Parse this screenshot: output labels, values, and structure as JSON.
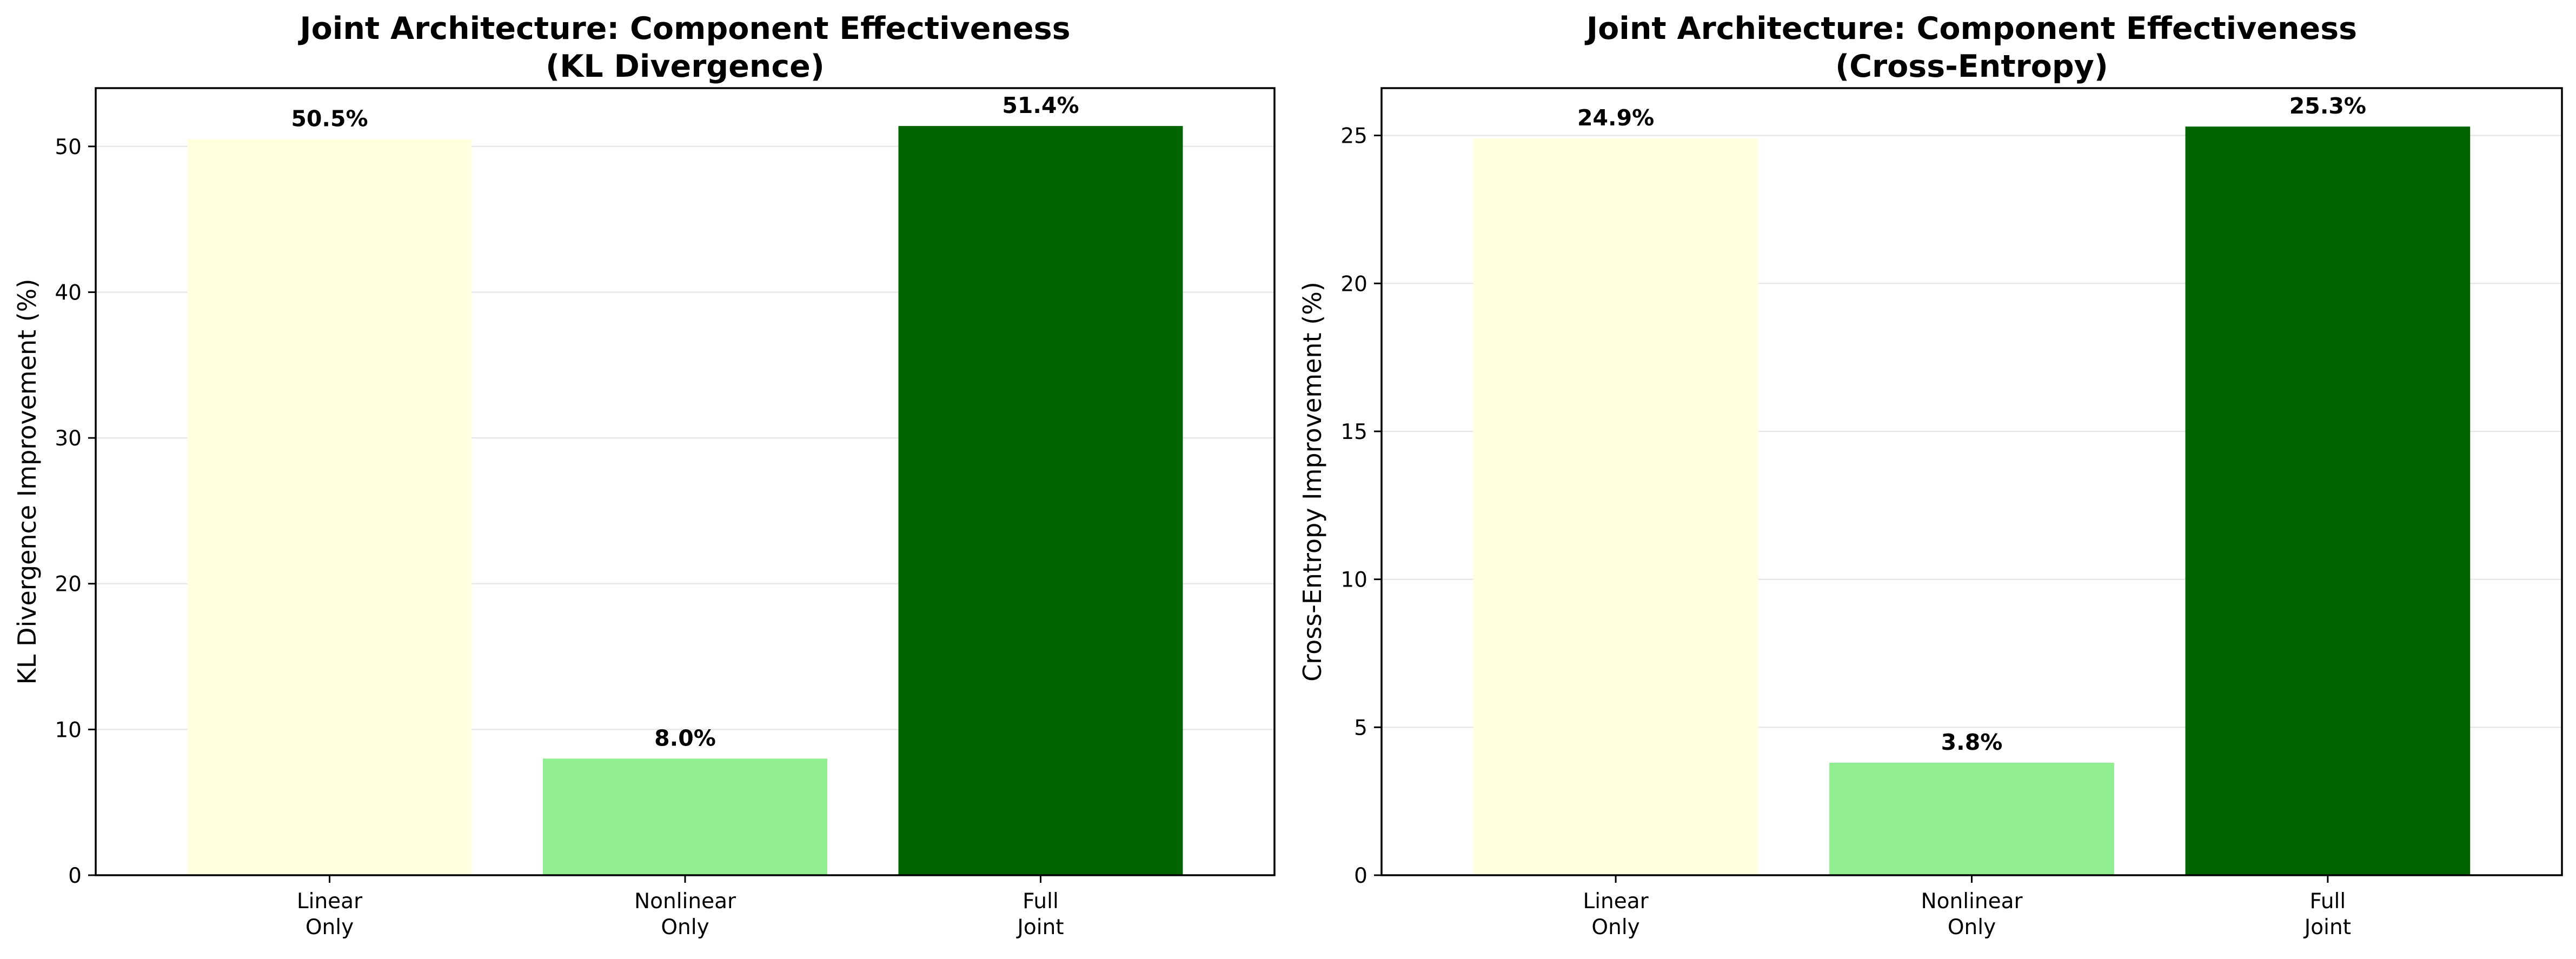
{
  "chart_data": [
    {
      "type": "bar",
      "title_lines": [
        "Joint Architecture: Component Effectiveness",
        "(KL Divergence)"
      ],
      "xlabel": "",
      "ylabel": "KL Divergence Improvement (%)",
      "categories": [
        [
          "Linear",
          "Only"
        ],
        [
          "Nonlinear",
          "Only"
        ],
        [
          "Full",
          "Joint"
        ]
      ],
      "values": [
        50.5,
        8.0,
        51.4
      ],
      "value_labels": [
        "50.5%",
        "8.0%",
        "51.4%"
      ],
      "colors": [
        "#ffffe0",
        "#90ee90",
        "#006400"
      ],
      "ylim": [
        0,
        54.0
      ],
      "yticks": [
        0,
        10,
        20,
        30,
        40,
        50
      ],
      "grid": true
    },
    {
      "type": "bar",
      "title_lines": [
        "Joint Architecture: Component Effectiveness",
        "(Cross-Entropy)"
      ],
      "xlabel": "",
      "ylabel": "Cross-Entropy Improvement (%)",
      "categories": [
        [
          "Linear",
          "Only"
        ],
        [
          "Nonlinear",
          "Only"
        ],
        [
          "Full",
          "Joint"
        ]
      ],
      "values": [
        24.9,
        3.8,
        25.3
      ],
      "value_labels": [
        "24.9%",
        "3.8%",
        "25.3%"
      ],
      "colors": [
        "#ffffe0",
        "#90ee90",
        "#006400"
      ],
      "ylim": [
        0,
        26.6
      ],
      "yticks": [
        0,
        5,
        10,
        15,
        20,
        25
      ],
      "grid": true
    }
  ]
}
